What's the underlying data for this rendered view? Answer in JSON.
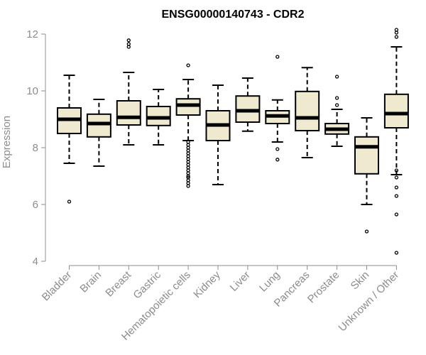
{
  "chart_data": {
    "type": "boxplot",
    "title": "ENSG00000140743 - CDR2",
    "xlabel": "",
    "ylabel": "Expression",
    "ylim": [
      4,
      12
    ],
    "yticks": [
      4,
      6,
      8,
      10,
      12
    ],
    "grid": false,
    "legend": "none",
    "box_fill": "#efe9d0",
    "categories": [
      "Bladder",
      "Brain",
      "Breast",
      "Gastric",
      "Hematopoietic cells",
      "Kidney",
      "Liver",
      "Lung",
      "Pancreas",
      "Prostate",
      "Skin",
      "Unknown / Other"
    ],
    "boxes": [
      {
        "category": "Bladder",
        "whisker_low": 7.45,
        "q1": 8.5,
        "median": 9.0,
        "q3": 9.4,
        "whisker_high": 10.55,
        "outliers": [
          6.1
        ]
      },
      {
        "category": "Brain",
        "whisker_low": 7.35,
        "q1": 8.38,
        "median": 8.85,
        "q3": 9.18,
        "whisker_high": 9.7,
        "outliers": []
      },
      {
        "category": "Breast",
        "whisker_low": 8.1,
        "q1": 8.8,
        "median": 9.07,
        "q3": 9.65,
        "whisker_high": 10.65,
        "outliers": [
          11.55,
          11.65,
          11.78
        ]
      },
      {
        "category": "Gastric",
        "whisker_low": 8.1,
        "q1": 8.78,
        "median": 9.05,
        "q3": 9.45,
        "whisker_high": 10.05,
        "outliers": []
      },
      {
        "category": "Hematopoietic cells",
        "whisker_low": 8.25,
        "q1": 9.15,
        "median": 9.5,
        "q3": 9.72,
        "whisker_high": 10.4,
        "outliers": [
          10.9,
          8.2,
          8.1,
          8.0,
          7.9,
          7.8,
          7.7,
          7.6,
          7.5,
          7.4,
          7.3,
          7.2,
          7.1,
          7.0,
          6.95,
          6.85,
          6.75,
          6.65
        ]
      },
      {
        "category": "Kidney",
        "whisker_low": 6.7,
        "q1": 8.25,
        "median": 8.8,
        "q3": 9.3,
        "whisker_high": 10.2,
        "outliers": []
      },
      {
        "category": "Liver",
        "whisker_low": 8.58,
        "q1": 8.9,
        "median": 9.3,
        "q3": 9.82,
        "whisker_high": 10.45,
        "outliers": []
      },
      {
        "category": "Lung",
        "whisker_low": 8.2,
        "q1": 8.85,
        "median": 9.12,
        "q3": 9.3,
        "whisker_high": 9.68,
        "outliers": [
          11.2,
          7.95,
          7.58
        ]
      },
      {
        "category": "Pancreas",
        "whisker_low": 7.65,
        "q1": 8.6,
        "median": 9.05,
        "q3": 9.98,
        "whisker_high": 10.82,
        "outliers": []
      },
      {
        "category": "Prostate",
        "whisker_low": 8.05,
        "q1": 8.48,
        "median": 8.65,
        "q3": 8.85,
        "whisker_high": 9.35,
        "outliers": [
          10.5,
          9.75,
          9.5
        ]
      },
      {
        "category": "Skin",
        "whisker_low": 6.0,
        "q1": 7.08,
        "median": 8.03,
        "q3": 8.38,
        "whisker_high": 9.05,
        "outliers": [
          5.05
        ]
      },
      {
        "category": "Unknown / Other",
        "whisker_low": 7.05,
        "q1": 8.7,
        "median": 9.2,
        "q3": 9.88,
        "whisker_high": 11.55,
        "outliers": [
          12.15,
          12.05,
          11.9,
          7.2,
          6.95,
          6.6,
          6.3,
          5.65,
          4.3
        ]
      }
    ]
  }
}
